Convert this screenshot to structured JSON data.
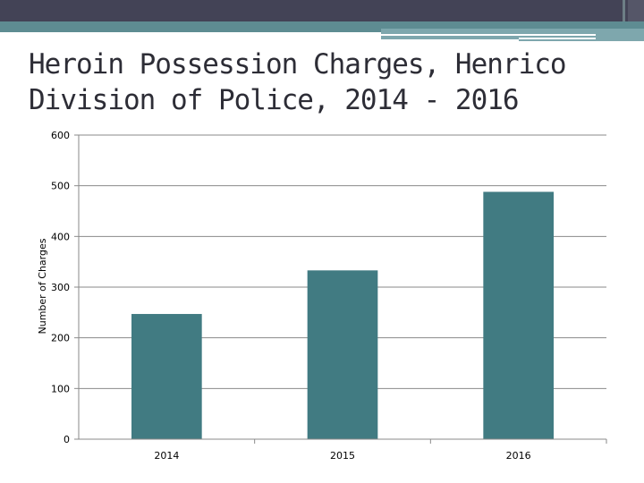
{
  "slide": {
    "title": "Heroin Possession Charges, Henrico Division of Police, 2014 - 2016"
  },
  "colors": {
    "bar": "#417b82",
    "header_dark": "#434356",
    "header_teal": "#5e8c92"
  },
  "chart_data": {
    "type": "bar",
    "title": "",
    "xlabel": "",
    "ylabel": "Number of Charges",
    "categories": [
      "2014",
      "2015",
      "2016"
    ],
    "values": [
      247,
      333,
      488
    ],
    "ylim": [
      0,
      600
    ],
    "yticks": [
      "0",
      "100",
      "200",
      "300",
      "400",
      "500",
      "600"
    ],
    "grid": true,
    "legend": "none"
  }
}
